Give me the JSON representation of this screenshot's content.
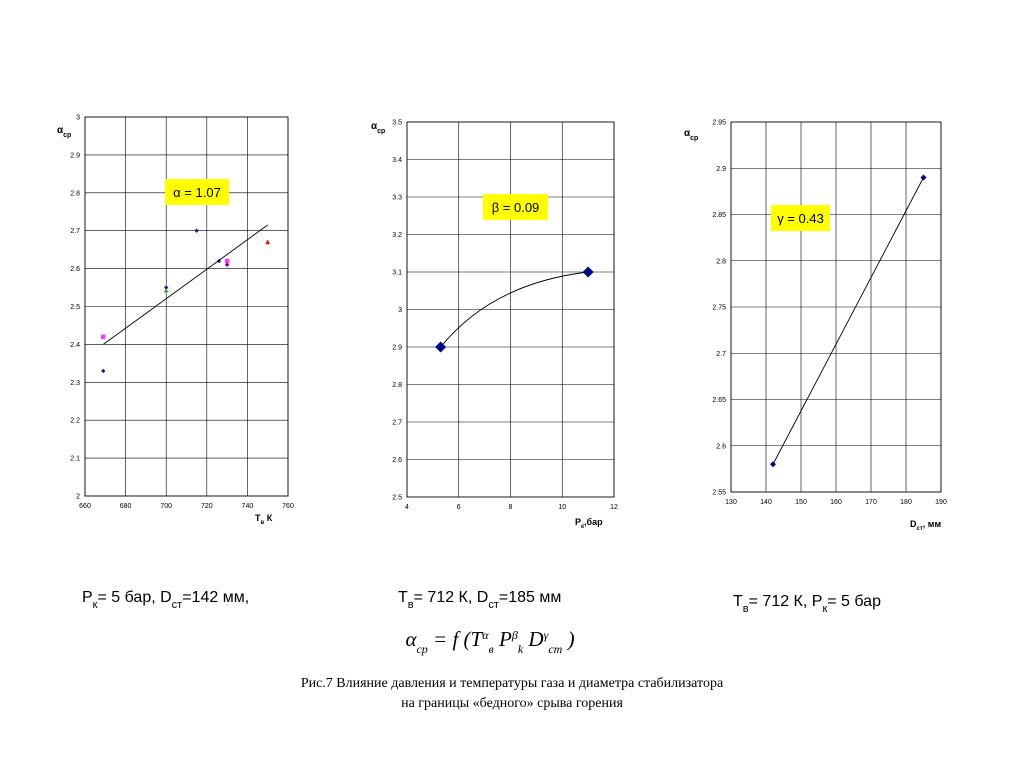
{
  "chart_data": [
    {
      "type": "scatter",
      "annotation": "α = 1.07",
      "y_label": [
        "α",
        "ср"
      ],
      "x_label": [
        "Т",
        "в",
        " К"
      ],
      "xlim": [
        660,
        760
      ],
      "xticks": [
        660,
        680,
        700,
        720,
        740,
        760
      ],
      "ylim": [
        2,
        3
      ],
      "yticks": [
        2,
        2.1,
        2.2,
        2.3,
        2.4,
        2.5,
        2.6,
        2.7,
        2.8,
        2.9,
        3
      ],
      "grid": true,
      "series": [
        {
          "color": "#1a1a80",
          "marker": "diamond",
          "x": [
            669,
            700,
            715,
            726
          ],
          "values": [
            2.33,
            2.55,
            2.7,
            2.62
          ]
        },
        {
          "color": "#ff33ff",
          "marker": "square",
          "x": [
            669,
            730
          ],
          "values": [
            2.42,
            2.62
          ]
        },
        {
          "color": "#22aa22",
          "marker": "diamond",
          "x": [
            700
          ],
          "values": [
            2.54
          ]
        },
        {
          "color": "#800080",
          "marker": "diamond",
          "x": [
            730
          ],
          "values": [
            2.61
          ]
        },
        {
          "color": "#dd0000",
          "marker": "triangle",
          "x": [
            750
          ],
          "values": [
            2.67
          ]
        },
        {
          "color": "#000000",
          "line": "straight",
          "x": [
            669,
            750
          ],
          "values": [
            2.4,
            2.715
          ]
        }
      ]
    },
    {
      "type": "scatter",
      "annotation": "β = 0.09",
      "y_label": [
        "α",
        "ср"
      ],
      "x_label": [
        "P",
        "к",
        ",бар"
      ],
      "xlim": [
        4,
        12
      ],
      "xticks": [
        4,
        6,
        8,
        10,
        12
      ],
      "ylim": [
        2.5,
        3.5
      ],
      "yticks": [
        2.5,
        2.6,
        2.7,
        2.8,
        2.9,
        3,
        3.1,
        3.2,
        3.3,
        3.4,
        3.5
      ],
      "grid": true,
      "series": [
        {
          "color": "#00008b",
          "marker": "diamond",
          "line": "curve",
          "x": [
            5.3,
            11
          ],
          "values": [
            2.9,
            3.1
          ]
        }
      ]
    },
    {
      "type": "scatter",
      "annotation": "γ = 0.43",
      "y_label": [
        "α",
        "ср"
      ],
      "x_label": [
        "D",
        "ст",
        ", мм"
      ],
      "xlim": [
        130,
        190
      ],
      "xticks": [
        130,
        140,
        150,
        160,
        170,
        180,
        190
      ],
      "ylim": [
        2.55,
        2.95
      ],
      "yticks": [
        2.55,
        2.6,
        2.65,
        2.7,
        2.75,
        2.8,
        2.85,
        2.9,
        2.95
      ],
      "grid": true,
      "series": [
        {
          "color": "#00008b",
          "marker": "diamond",
          "line": "straight",
          "x": [
            142,
            185
          ],
          "values": [
            2.58,
            2.89
          ]
        }
      ]
    }
  ],
  "captions": [
    [
      "P",
      "к",
      "= 5 бар, D",
      "ст",
      "=142 мм,"
    ],
    [
      "Т",
      "в",
      "= 712 К, D",
      "ст",
      "=185 мм"
    ],
    [
      "Т",
      "в",
      "= 712 К, Р",
      "к",
      "= 5 бар"
    ]
  ],
  "formula": {
    "lhs": "α",
    "lhs_sub": "ср",
    "eq": " = f (",
    "t": "T",
    "t_sup": "α",
    "t_sub": "в",
    "p": " P",
    "p_sup": "β",
    "p_sub": "k",
    "d": " D",
    "d_sup": "γ",
    "d_sub": "ст",
    "close": " )"
  },
  "figure_caption": [
    "Рис.7  Влияние давления и температуры газа и диаметра стабилизатора",
    "на границы «бедного» срыва горения"
  ]
}
